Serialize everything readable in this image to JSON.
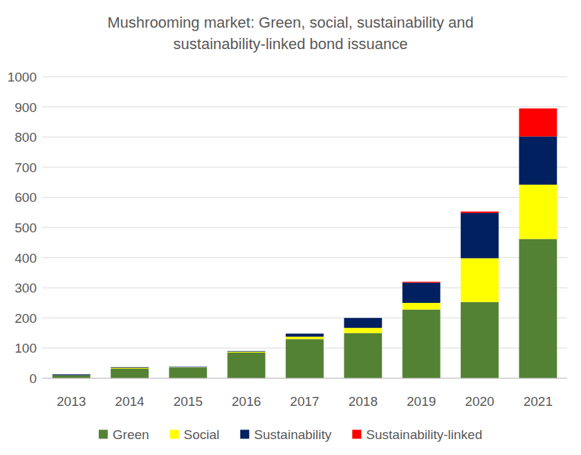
{
  "chart_data": {
    "type": "bar",
    "title": "Mushrooming market: Green, social, sustainability and sustainability-linked bond issuance",
    "categories": [
      "2013",
      "2014",
      "2015",
      "2016",
      "2017",
      "2018",
      "2019",
      "2020",
      "2021"
    ],
    "series": [
      {
        "name": "Green",
        "color": "#548235",
        "values": [
          10,
          32,
          35,
          85,
          130,
          150,
          228,
          253,
          462
        ]
      },
      {
        "name": "Social",
        "color": "#ffff00",
        "values": [
          0,
          3,
          1,
          3,
          8,
          17,
          22,
          145,
          180
        ]
      },
      {
        "name": "Sustainability",
        "color": "#002060",
        "values": [
          3,
          2,
          2,
          2,
          10,
          33,
          67,
          150,
          160
        ]
      },
      {
        "name": "Sustainability-linked",
        "color": "#ff0000",
        "values": [
          0,
          0,
          0,
          0,
          0,
          0,
          3,
          5,
          93
        ]
      }
    ],
    "ylim": [
      0,
      1000
    ],
    "yticks": [
      0,
      100,
      200,
      300,
      400,
      500,
      600,
      700,
      800,
      900,
      1000
    ],
    "stacked": true,
    "grid": true,
    "legend": "bottom"
  }
}
